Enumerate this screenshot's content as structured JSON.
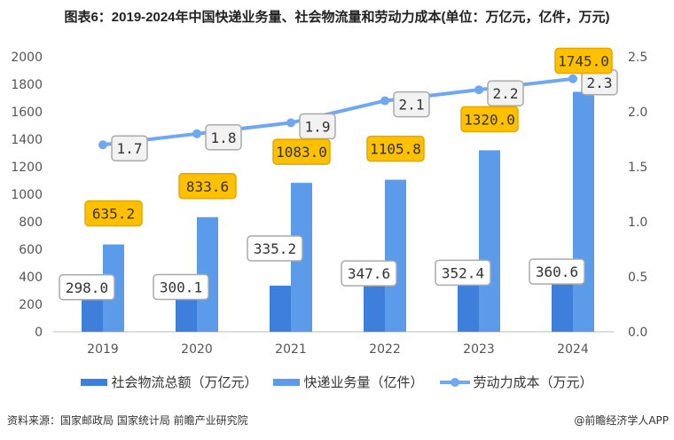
{
  "title": "图表6：2019-2024年中国快递业务量、社会物流量和劳动力成本(单位：万亿元，亿件，万元)",
  "source": "资料来源：国家邮政局 国家统计局 前瞻产业研究院",
  "brand": "@前瞻经济学人APP",
  "chart_data": {
    "type": "bar+line",
    "categories": [
      "2019",
      "2020",
      "2021",
      "2022",
      "2023",
      "2024"
    ],
    "series": [
      {
        "name": "社会物流总额（万亿元）",
        "type": "bar",
        "axis": "left",
        "color": "#3f7fdc",
        "values": [
          298.0,
          300.1,
          335.2,
          347.6,
          352.4,
          360.6
        ]
      },
      {
        "name": "快递业务量（亿件）",
        "type": "bar",
        "axis": "left",
        "color": "#5b9bea",
        "values": [
          635.2,
          833.6,
          1083.0,
          1105.8,
          1320.0,
          1745.0
        ]
      },
      {
        "name": "劳动力成本（万元）",
        "type": "line",
        "axis": "right",
        "color": "#6fa8f0",
        "values": [
          1.7,
          1.8,
          1.9,
          2.1,
          2.2,
          2.3
        ]
      }
    ],
    "left_axis": {
      "range": [
        0,
        2000
      ],
      "ticks": [
        "0",
        "200",
        "400",
        "600",
        "800",
        "1000",
        "1200",
        "1400",
        "1600",
        "1800",
        "2000"
      ]
    },
    "right_axis": {
      "range": [
        0,
        2.5
      ],
      "ticks": [
        "0.0",
        "0.5",
        "1.0",
        "1.5",
        "2.0",
        "2.5"
      ]
    },
    "label_colors": {
      "bar1": "#ffffff",
      "bar2": "#ffc000",
      "line": "#f2f2f2"
    },
    "grid": false,
    "legend": "bottom"
  }
}
